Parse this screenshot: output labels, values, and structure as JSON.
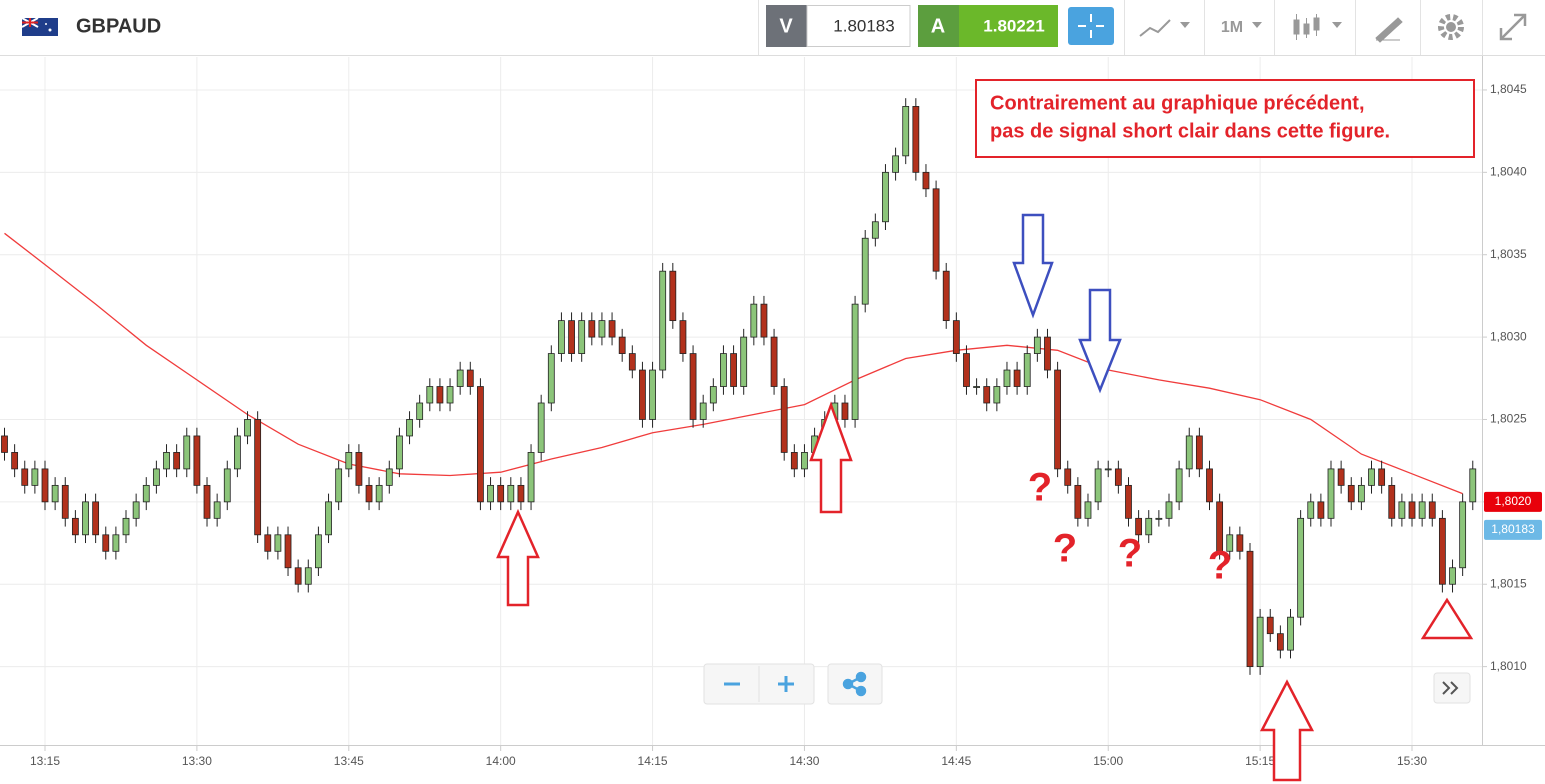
{
  "header": {
    "symbol": "GBPAUD",
    "sell_label": "V",
    "sell_price": "1.80183",
    "buy_label": "A",
    "buy_price": "1.80221",
    "timeframe": "1M"
  },
  "chart_data": {
    "type": "candlestick",
    "x": [
      "13:11",
      "13:12",
      "13:13",
      "13:14",
      "13:15",
      "13:16",
      "13:17",
      "13:18",
      "13:19",
      "13:20",
      "13:21",
      "13:22",
      "13:23",
      "13:24",
      "13:25",
      "13:26",
      "13:27",
      "13:28",
      "13:29",
      "13:30",
      "13:31",
      "13:32",
      "13:33",
      "13:34",
      "13:35",
      "13:36",
      "13:37",
      "13:38",
      "13:39",
      "13:40",
      "13:41",
      "13:42",
      "13:43",
      "13:44",
      "13:45",
      "13:46",
      "13:47",
      "13:48",
      "13:49",
      "13:50",
      "13:51",
      "13:52",
      "13:53",
      "13:54",
      "13:55",
      "13:56",
      "13:57",
      "13:58",
      "13:59",
      "14:00",
      "14:01",
      "14:02",
      "14:03",
      "14:04",
      "14:05",
      "14:06",
      "14:07",
      "14:08",
      "14:09",
      "14:10",
      "14:11",
      "14:12",
      "14:13",
      "14:14",
      "14:15",
      "14:16",
      "14:17",
      "14:18",
      "14:19",
      "14:20",
      "14:21",
      "14:22",
      "14:23",
      "14:24",
      "14:25",
      "14:26",
      "14:27",
      "14:28",
      "14:29",
      "14:30",
      "14:31",
      "14:32",
      "14:33",
      "14:34",
      "14:35",
      "14:36",
      "14:37",
      "14:38",
      "14:39",
      "14:40",
      "14:41",
      "14:42",
      "14:43",
      "14:44",
      "14:45",
      "14:46",
      "14:47",
      "14:48",
      "14:49",
      "14:50",
      "14:51",
      "14:52",
      "14:53",
      "14:54",
      "14:55",
      "14:56",
      "14:57",
      "14:58",
      "14:59",
      "15:00",
      "15:01",
      "15:02",
      "15:03",
      "15:04",
      "15:05",
      "15:06",
      "15:07",
      "15:08",
      "15:09",
      "15:10",
      "15:11",
      "15:12",
      "15:13",
      "15:14",
      "15:15",
      "15:16",
      "15:17",
      "15:18",
      "15:19",
      "15:20",
      "15:21",
      "15:22",
      "15:23",
      "15:24",
      "15:25",
      "15:26",
      "15:27",
      "15:28",
      "15:29",
      "15:30",
      "15:31",
      "15:32",
      "15:33",
      "15:34",
      "15:35",
      "15:36"
    ],
    "open": [
      1.8024,
      1.8023,
      1.8022,
      1.8021,
      1.8022,
      1.802,
      1.8021,
      1.8019,
      1.8018,
      1.802,
      1.8018,
      1.8017,
      1.8018,
      1.8019,
      1.802,
      1.8021,
      1.8022,
      1.8023,
      1.8022,
      1.8024,
      1.8021,
      1.8019,
      1.802,
      1.8022,
      1.8024,
      1.8025,
      1.8018,
      1.8017,
      1.8018,
      1.8016,
      1.8015,
      1.8016,
      1.8018,
      1.802,
      1.8022,
      1.8023,
      1.8021,
      1.802,
      1.8021,
      1.8022,
      1.8024,
      1.8025,
      1.8026,
      1.8027,
      1.8026,
      1.8027,
      1.8028,
      1.8027,
      1.802,
      1.8021,
      1.802,
      1.8021,
      1.802,
      1.8023,
      1.8026,
      1.8029,
      1.8031,
      1.8029,
      1.8031,
      1.803,
      1.8031,
      1.803,
      1.8029,
      1.8028,
      1.8025,
      1.8028,
      1.8034,
      1.8031,
      1.8029,
      1.8025,
      1.8026,
      1.8027,
      1.8029,
      1.8027,
      1.803,
      1.8032,
      1.803,
      1.8027,
      1.8023,
      1.8022,
      1.8023,
      1.8024,
      1.8025,
      1.8026,
      1.8025,
      1.8032,
      1.8036,
      1.8037,
      1.804,
      1.8041,
      1.8044,
      1.804,
      1.8039,
      1.8034,
      1.8031,
      1.8029,
      1.8027,
      1.8027,
      1.8026,
      1.8027,
      1.8028,
      1.8027,
      1.8029,
      1.803,
      1.8028,
      1.8022,
      1.8021,
      1.8019,
      1.802,
      1.8022,
      1.8022,
      1.8021,
      1.8019,
      1.8018,
      1.8019,
      1.8019,
      1.802,
      1.8022,
      1.8024,
      1.8022,
      1.802,
      1.8017,
      1.8018,
      1.8017,
      1.801,
      1.8013,
      1.8012,
      1.8011,
      1.8013,
      1.8019,
      1.802,
      1.8019,
      1.8022,
      1.8021,
      1.802,
      1.8021,
      1.8022,
      1.8021,
      1.8019,
      1.802,
      1.8019,
      1.802,
      1.8019,
      1.8015,
      1.8016,
      1.802
    ],
    "high": [
      1.80245,
      1.80235,
      1.80225,
      1.80225,
      1.80225,
      1.80215,
      1.80215,
      1.80195,
      1.80205,
      1.80205,
      1.80185,
      1.80185,
      1.80195,
      1.80205,
      1.80215,
      1.80225,
      1.80235,
      1.80235,
      1.80245,
      1.80245,
      1.80215,
      1.80205,
      1.80225,
      1.80245,
      1.80255,
      1.80255,
      1.80185,
      1.80185,
      1.80185,
      1.80165,
      1.80165,
      1.80185,
      1.80205,
      1.80225,
      1.80235,
      1.80235,
      1.80215,
      1.80215,
      1.80225,
      1.80245,
      1.80255,
      1.80265,
      1.80275,
      1.80275,
      1.80275,
      1.80285,
      1.80285,
      1.80275,
      1.80215,
      1.80215,
      1.80215,
      1.80215,
      1.80235,
      1.80265,
      1.80295,
      1.80315,
      1.80315,
      1.80315,
      1.80315,
      1.80315,
      1.80315,
      1.80305,
      1.80295,
      1.80285,
      1.80285,
      1.80345,
      1.80345,
      1.80315,
      1.80295,
      1.80265,
      1.80275,
      1.80295,
      1.80295,
      1.80305,
      1.80325,
      1.80325,
      1.80305,
      1.80275,
      1.80235,
      1.80235,
      1.80245,
      1.80255,
      1.80265,
      1.80265,
      1.80325,
      1.80365,
      1.80375,
      1.80405,
      1.80415,
      1.80445,
      1.80445,
      1.80405,
      1.80395,
      1.80345,
      1.80315,
      1.80295,
      1.80275,
      1.80275,
      1.80275,
      1.80285,
      1.80285,
      1.80295,
      1.80305,
      1.80305,
      1.80285,
      1.80225,
      1.80215,
      1.80205,
      1.80225,
      1.80225,
      1.80225,
      1.80215,
      1.80195,
      1.80195,
      1.80195,
      1.80205,
      1.80225,
      1.80245,
      1.80245,
      1.80225,
      1.80205,
      1.80185,
      1.80185,
      1.80175,
      1.80135,
      1.80135,
      1.80125,
      1.80135,
      1.80195,
      1.80205,
      1.80205,
      1.80225,
      1.80225,
      1.80215,
      1.80215,
      1.80225,
      1.80225,
      1.80215,
      1.80205,
      1.80205,
      1.80205,
      1.80205,
      1.80195,
      1.80165,
      1.80205,
      1.80225
    ],
    "low": [
      1.80225,
      1.80215,
      1.80205,
      1.80205,
      1.80195,
      1.80195,
      1.80185,
      1.80175,
      1.80175,
      1.80175,
      1.80165,
      1.80165,
      1.80175,
      1.80185,
      1.80195,
      1.80205,
      1.80215,
      1.80215,
      1.80215,
      1.80205,
      1.80185,
      1.80185,
      1.80195,
      1.80215,
      1.80235,
      1.80175,
      1.80165,
      1.80165,
      1.80155,
      1.80145,
      1.80145,
      1.80155,
      1.80175,
      1.80195,
      1.80215,
      1.80205,
      1.80195,
      1.80195,
      1.80205,
      1.80215,
      1.80235,
      1.80245,
      1.80255,
      1.80255,
      1.80255,
      1.80265,
      1.80265,
      1.80195,
      1.80195,
      1.80195,
      1.80195,
      1.80195,
      1.80195,
      1.80225,
      1.80255,
      1.80285,
      1.80285,
      1.80285,
      1.80295,
      1.80295,
      1.80295,
      1.80285,
      1.80275,
      1.80245,
      1.80245,
      1.80275,
      1.80305,
      1.80285,
      1.80245,
      1.80245,
      1.80255,
      1.80265,
      1.80265,
      1.80265,
      1.80295,
      1.80295,
      1.80265,
      1.80225,
      1.80215,
      1.80215,
      1.80225,
      1.80235,
      1.80245,
      1.80245,
      1.80245,
      1.80315,
      1.80355,
      1.80365,
      1.80395,
      1.80405,
      1.80395,
      1.80385,
      1.80335,
      1.80305,
      1.80285,
      1.80265,
      1.80265,
      1.80255,
      1.80255,
      1.80265,
      1.80265,
      1.80265,
      1.80285,
      1.80275,
      1.80215,
      1.80205,
      1.80185,
      1.80185,
      1.80195,
      1.80215,
      1.80205,
      1.80185,
      1.80175,
      1.80175,
      1.80185,
      1.80185,
      1.80195,
      1.80215,
      1.80215,
      1.80195,
      1.80165,
      1.80165,
      1.80165,
      1.80095,
      1.80095,
      1.80115,
      1.80105,
      1.80105,
      1.80125,
      1.80185,
      1.80185,
      1.80185,
      1.80205,
      1.80195,
      1.80195,
      1.80205,
      1.80205,
      1.80185,
      1.80185,
      1.80185,
      1.80185,
      1.80185,
      1.80145,
      1.80145,
      1.80155,
      1.80195
    ],
    "close": [
      1.8023,
      1.8022,
      1.8021,
      1.8022,
      1.802,
      1.8021,
      1.8019,
      1.8018,
      1.802,
      1.8018,
      1.8017,
      1.8018,
      1.8019,
      1.802,
      1.8021,
      1.8022,
      1.8023,
      1.8022,
      1.8024,
      1.8021,
      1.8019,
      1.802,
      1.8022,
      1.8024,
      1.8025,
      1.8018,
      1.8017,
      1.8018,
      1.8016,
      1.8015,
      1.8016,
      1.8018,
      1.802,
      1.8022,
      1.8023,
      1.8021,
      1.802,
      1.8021,
      1.8022,
      1.8024,
      1.8025,
      1.8026,
      1.8027,
      1.8026,
      1.8027,
      1.8028,
      1.8027,
      1.802,
      1.8021,
      1.802,
      1.8021,
      1.802,
      1.8023,
      1.8026,
      1.8029,
      1.8031,
      1.8029,
      1.8031,
      1.803,
      1.8031,
      1.803,
      1.8029,
      1.8028,
      1.8025,
      1.8028,
      1.8034,
      1.8031,
      1.8029,
      1.8025,
      1.8026,
      1.8027,
      1.8029,
      1.8027,
      1.803,
      1.8032,
      1.803,
      1.8027,
      1.8023,
      1.8022,
      1.8023,
      1.8024,
      1.8025,
      1.8026,
      1.8025,
      1.8032,
      1.8036,
      1.8037,
      1.804,
      1.8041,
      1.8044,
      1.804,
      1.8039,
      1.8034,
      1.8031,
      1.8029,
      1.8027,
      1.8027,
      1.8026,
      1.8027,
      1.8028,
      1.8027,
      1.8029,
      1.803,
      1.8028,
      1.8022,
      1.8021,
      1.8019,
      1.802,
      1.8022,
      1.8022,
      1.8021,
      1.8019,
      1.8018,
      1.8019,
      1.8019,
      1.802,
      1.8022,
      1.8024,
      1.8022,
      1.802,
      1.8017,
      1.8018,
      1.8017,
      1.801,
      1.8013,
      1.8012,
      1.8011,
      1.8013,
      1.8019,
      1.802,
      1.8019,
      1.8022,
      1.8021,
      1.802,
      1.8021,
      1.8022,
      1.8021,
      1.8019,
      1.802,
      1.8019,
      1.802,
      1.8019,
      1.8015,
      1.8016,
      1.802,
      1.8022
    ],
    "up_color": "#8cc57a",
    "down_color": "#b2311c",
    "moving_average": {
      "color": "#f03c3c",
      "x": [
        "13:11",
        "13:15",
        "13:20",
        "13:25",
        "13:30",
        "13:35",
        "13:40",
        "13:45",
        "13:50",
        "13:55",
        "14:00",
        "14:05",
        "14:10",
        "14:15",
        "14:20",
        "14:25",
        "14:30",
        "14:35",
        "14:40",
        "14:45",
        "14:50",
        "14:55",
        "15:00",
        "15:05",
        "15:10",
        "15:15",
        "15:20",
        "15:25",
        "15:30",
        "15:35"
      ],
      "values": [
        1.80363,
        1.80344,
        1.8032,
        1.80295,
        1.80274,
        1.80253,
        1.80235,
        1.80223,
        1.80217,
        1.80216,
        1.80218,
        1.80226,
        1.80233,
        1.80242,
        1.80247,
        1.80253,
        1.80259,
        1.80274,
        1.80287,
        1.80292,
        1.80295,
        1.80292,
        1.8028,
        1.80274,
        1.80269,
        1.80262,
        1.8025,
        1.80229,
        1.80217,
        1.80205
      ]
    },
    "ylim": [
      1.8005,
      1.8047
    ],
    "yticks": [
      {
        "value": 1.801,
        "label": "1,8010"
      },
      {
        "value": 1.8015,
        "label": "1,8015"
      },
      {
        "value": 1.802,
        "label": "1,8020"
      },
      {
        "value": 1.8025,
        "label": "1,8025"
      },
      {
        "value": 1.803,
        "label": "1,8030"
      },
      {
        "value": 1.8035,
        "label": "1,8035"
      },
      {
        "value": 1.804,
        "label": "1,8040"
      },
      {
        "value": 1.8045,
        "label": "1,8045"
      }
    ],
    "xticks": [
      "13:15",
      "13:30",
      "13:45",
      "14:00",
      "14:15",
      "14:30",
      "14:45",
      "15:00",
      "15:15",
      "15:30"
    ],
    "grid": true,
    "price_labels": [
      {
        "value": 1.802,
        "label": "1,8020",
        "color": "#e8000b"
      },
      {
        "value": 1.80183,
        "label": "1,80183",
        "color": "#6db9e6"
      }
    ],
    "annotation": [
      "Contrairement au graphique précédent,",
      "pas de signal short clair dans cette figure."
    ],
    "question_marks": [
      "?",
      "?",
      "?",
      "?"
    ]
  }
}
